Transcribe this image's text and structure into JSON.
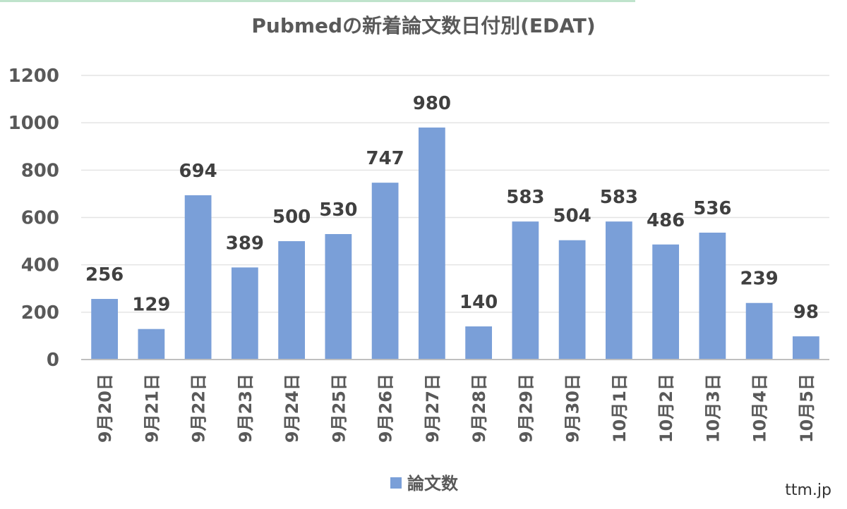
{
  "chart_data": {
    "type": "bar",
    "title": "Pubmedの新着論文数日付別(EDAT)",
    "categories": [
      "9月20日",
      "9月21日",
      "9月22日",
      "9月23日",
      "9月24日",
      "9月25日",
      "9月26日",
      "9月27日",
      "9月28日",
      "9月29日",
      "9月30日",
      "10月1日",
      "10月2日",
      "10月3日",
      "10月4日",
      "10月5日"
    ],
    "series": [
      {
        "name": "論文数",
        "values": [
          256,
          129,
          694,
          389,
          500,
          530,
          747,
          980,
          140,
          583,
          504,
          583,
          486,
          536,
          239,
          98
        ],
        "color": "#7a9fd8"
      }
    ],
    "ylim": [
      0,
      1200
    ],
    "yticks": [
      0,
      200,
      400,
      600,
      800,
      1000,
      1200
    ],
    "grid": true,
    "legend_position": "bottom",
    "data_labels": true
  },
  "watermark": "ttm.jp"
}
